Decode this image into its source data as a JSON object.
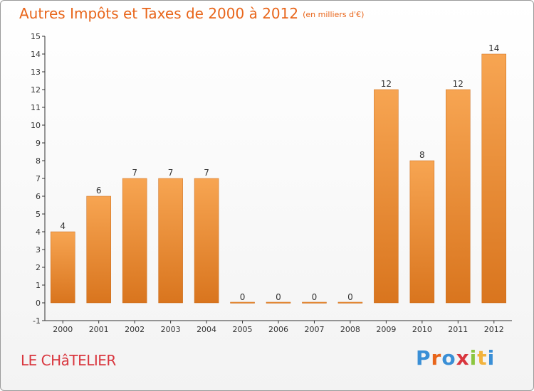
{
  "header": {
    "title": "Autres Impôts et Taxes de 2000 à 2012",
    "unit": "(en milliers d'€)"
  },
  "footer": {
    "commune": "LE CHâTELIER",
    "brand": [
      "P",
      "r",
      "o",
      "x",
      "i",
      "t",
      "i"
    ],
    "brand_colors": [
      "#3a8fd6",
      "#e8651a",
      "#3a8fd6",
      "#d9363e",
      "#8cc63f",
      "#f2b33d",
      "#3a8fd6"
    ]
  },
  "chart_data": {
    "type": "bar",
    "categories": [
      "2000",
      "2001",
      "2002",
      "2003",
      "2004",
      "2005",
      "2006",
      "2007",
      "2008",
      "2009",
      "2010",
      "2011",
      "2012"
    ],
    "values": [
      4,
      6,
      7,
      7,
      7,
      0,
      0,
      0,
      0,
      12,
      8,
      12,
      14
    ],
    "data_labels": [
      "4",
      "6",
      "7",
      "7",
      "7",
      "0",
      "0",
      "0",
      "0",
      "12",
      "8",
      "12",
      "14"
    ],
    "yticks": [
      "-1",
      "0",
      "1",
      "2",
      "3",
      "4",
      "5",
      "6",
      "7",
      "8",
      "9",
      "10",
      "11",
      "12",
      "13",
      "14",
      "15"
    ],
    "ylim": [
      -1,
      15
    ],
    "grid": false,
    "bar_color_top": "#f7a552",
    "bar_color_bottom": "#d9751e"
  }
}
